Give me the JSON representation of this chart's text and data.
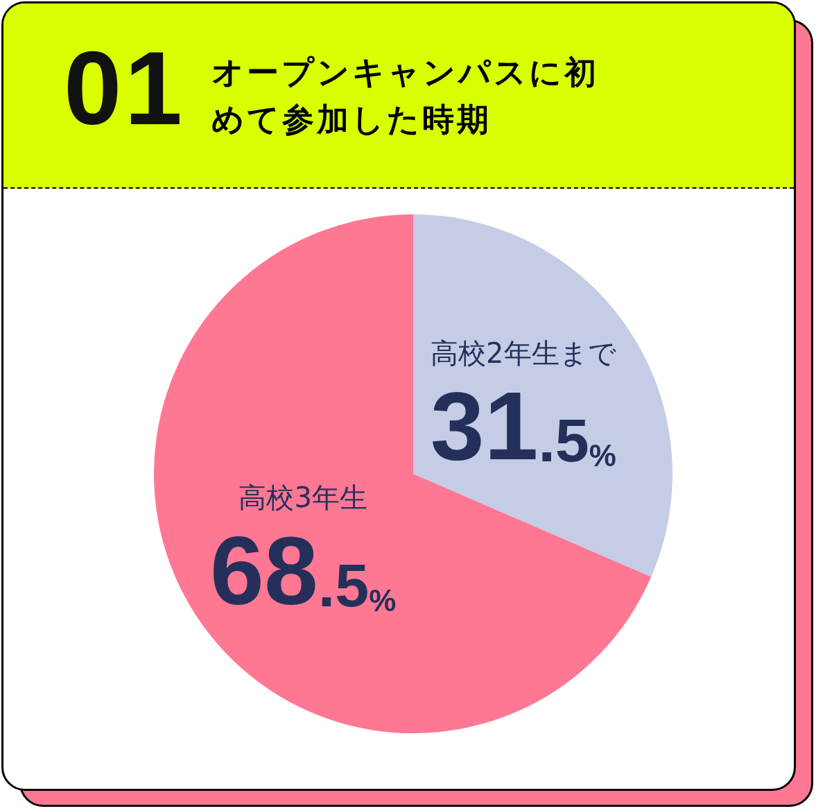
{
  "chart_data": {
    "type": "pie",
    "title": "オープンキャンパスに初めて参加した時期",
    "annotations": [
      "01"
    ],
    "categories": [
      "高校2年生まで",
      "高校3年生"
    ],
    "values": [
      31.5,
      68.5
    ],
    "colors": [
      "#c5cde6",
      "#fe7894"
    ],
    "value_labels": [
      "31.5%",
      "68.5%"
    ],
    "legend": false
  }
}
